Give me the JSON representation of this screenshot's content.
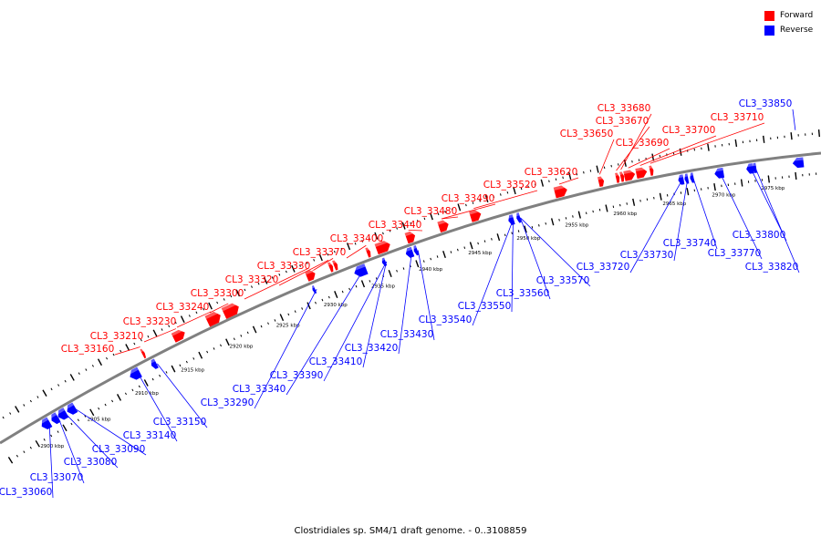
{
  "title": "Clostridiales sp. SM4/1 draft genome. - 0..3108859",
  "legend": [
    {
      "label": "Forward",
      "color": "#ff0000"
    },
    {
      "label": "Reverse",
      "color": "#0000ff"
    }
  ],
  "colors": {
    "forward": "#ff0000",
    "reverse": "#0000ff",
    "backbone": "#808080"
  },
  "ticks": [
    "2900 kbp",
    "2905 kbp",
    "2910 kbp",
    "2915 kbp",
    "2920 kbp",
    "2925 kbp",
    "2930 kbp",
    "2935 kbp",
    "2940 kbp",
    "2945 kbp",
    "2950 kbp",
    "2955 kbp",
    "2960 kbp",
    "2965 kbp",
    "2970 kbp",
    "2975 kbp"
  ],
  "forward_genes": [
    "CL3_33160",
    "CL3_33210",
    "CL3_33230",
    "CL3_33240",
    "CL3_33300",
    "CL3_33320",
    "CL3_33330",
    "CL3_33370",
    "CL3_33400",
    "CL3_33440",
    "CL3_33480",
    "CL3_33490",
    "CL3_33520",
    "CL3_33620",
    "CL3_33650",
    "CL3_33670",
    "CL3_33680",
    "CL3_33690",
    "CL3_33700",
    "CL3_33710"
  ],
  "reverse_genes": [
    "CL3_33060",
    "CL3_33070",
    "CL3_33080",
    "CL3_33090",
    "CL3_33140",
    "CL3_33150",
    "CL3_33290",
    "CL3_33340",
    "CL3_33390",
    "CL3_33410",
    "CL3_33420",
    "CL3_33430",
    "CL3_33540",
    "CL3_33550",
    "CL3_33560",
    "CL3_33570",
    "CL3_33720",
    "CL3_33730",
    "CL3_33740",
    "CL3_33770",
    "CL3_33800",
    "CL3_33820",
    "CL3_33850"
  ]
}
